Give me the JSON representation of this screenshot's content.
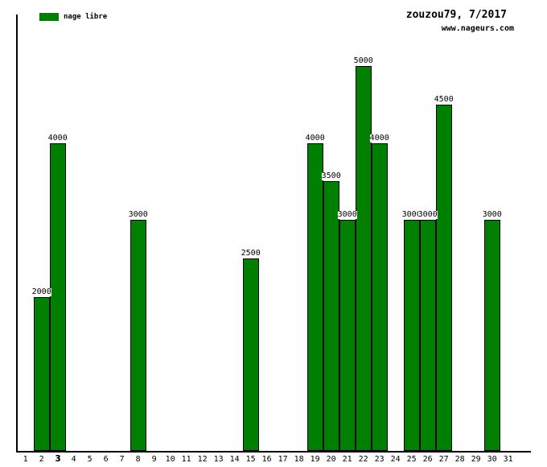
{
  "page": {
    "title": "zouzou79, 7/2017",
    "website": "www.nageurs.com"
  },
  "legend": {
    "label": "nage libre",
    "color": "#008000"
  },
  "chart_data": {
    "type": "bar",
    "title": "zouzou79, 7/2017",
    "series_name": "nage libre",
    "xlabel": "",
    "ylabel": "",
    "bar_color": "#008000",
    "bar_border_color": "#000000",
    "gridlines": false,
    "legend_position": "top-left",
    "value_labels_shown": true,
    "ylim": [
      0,
      5000
    ],
    "categories": [
      1,
      2,
      3,
      4,
      5,
      6,
      7,
      8,
      9,
      10,
      11,
      12,
      13,
      14,
      15,
      16,
      17,
      18,
      19,
      20,
      21,
      22,
      23,
      24,
      25,
      26,
      27,
      28,
      29,
      30,
      31
    ],
    "highlighted_category": 3,
    "values": [
      0,
      2000,
      4000,
      0,
      0,
      0,
      0,
      3000,
      0,
      0,
      0,
      0,
      0,
      0,
      2500,
      0,
      0,
      0,
      4000,
      3500,
      3000,
      5000,
      4000,
      0,
      3000,
      3000,
      4500,
      0,
      0,
      3000,
      0
    ],
    "points": [
      {
        "day": 2,
        "value": 2000
      },
      {
        "day": 3,
        "value": 4000
      },
      {
        "day": 8,
        "value": 3000
      },
      {
        "day": 15,
        "value": 2500
      },
      {
        "day": 19,
        "value": 4000
      },
      {
        "day": 20,
        "value": 3500
      },
      {
        "day": 21,
        "value": 3000
      },
      {
        "day": 22,
        "value": 5000
      },
      {
        "day": 23,
        "value": 4000
      },
      {
        "day": 25,
        "value": 3000
      },
      {
        "day": 26,
        "value": 3000
      },
      {
        "day": 27,
        "value": 4500
      },
      {
        "day": 30,
        "value": 3000
      }
    ]
  }
}
